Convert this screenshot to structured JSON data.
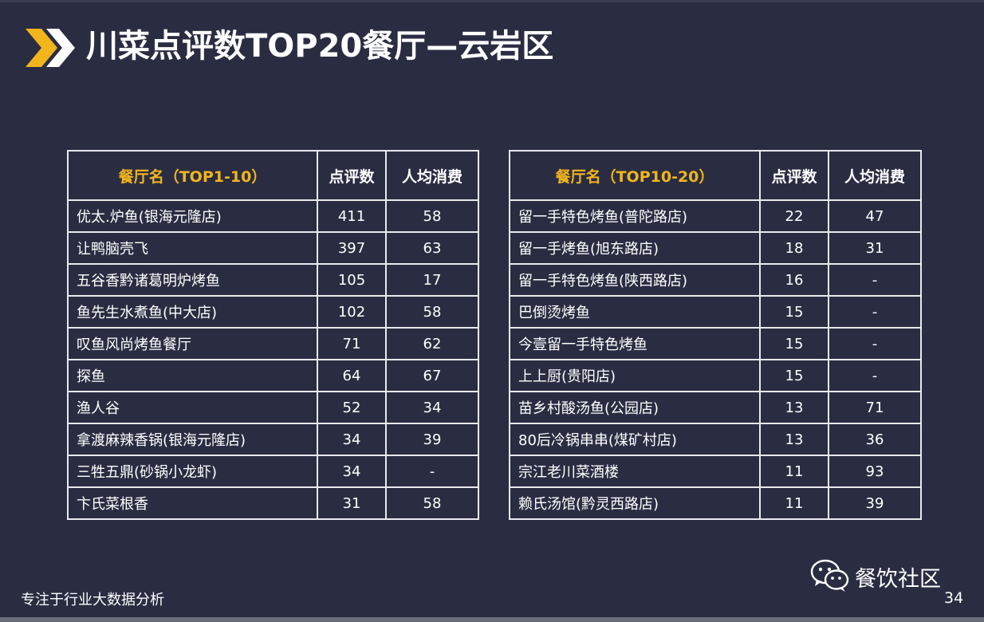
{
  "title": "川菜点评数TOP20餐厅—云岩区",
  "colors": {
    "background": "#2a2d42",
    "accent": "#f2b51c",
    "border": "#e9e9ee"
  },
  "left_table": {
    "headers": [
      "餐厅名（TOP1-10）",
      "点评数",
      "人均消费"
    ],
    "rows": [
      [
        "优太.炉鱼(银海元隆店)",
        "411",
        "58"
      ],
      [
        "让鸭脑壳飞",
        "397",
        "63"
      ],
      [
        "五谷香黔诸葛明炉烤鱼",
        "105",
        "17"
      ],
      [
        "鱼先生水煮鱼(中大店)",
        "102",
        "58"
      ],
      [
        "叹鱼风尚烤鱼餐厅",
        "71",
        "62"
      ],
      [
        "探鱼",
        "64",
        "67"
      ],
      [
        "渔人谷",
        "52",
        "34"
      ],
      [
        "拿渡麻辣香锅(银海元隆店)",
        "34",
        "39"
      ],
      [
        "三牲五鼎(砂锅小龙虾)",
        "34",
        "-"
      ],
      [
        "卞氏菜根香",
        "31",
        "58"
      ]
    ]
  },
  "right_table": {
    "headers": [
      "餐厅名（TOP10-20）",
      "点评数",
      "人均消费"
    ],
    "rows": [
      [
        "留一手特色烤鱼(普陀路店)",
        "22",
        "47"
      ],
      [
        "留一手烤鱼(旭东路店)",
        "18",
        "31"
      ],
      [
        "留一手特色烤鱼(陕西路店)",
        "16",
        "-"
      ],
      [
        "巴倒烫烤鱼",
        "15",
        "-"
      ],
      [
        "今壹留一手特色烤鱼",
        "15",
        "-"
      ],
      [
        "上上厨(贵阳店)",
        "15",
        "-"
      ],
      [
        "苗乡村酸汤鱼(公园店)",
        "13",
        "71"
      ],
      [
        "80后冷锅串串(煤矿村店)",
        "13",
        "36"
      ],
      [
        "宗江老川菜酒楼",
        "11",
        "93"
      ],
      [
        "赖氏汤馆(黔灵西路店)",
        "11",
        "39"
      ]
    ]
  },
  "footer": {
    "tagline": "专注于行业大数据分析",
    "brand": "餐饮社区",
    "page_number": "34",
    "brand_icon": "wechat-icon"
  }
}
